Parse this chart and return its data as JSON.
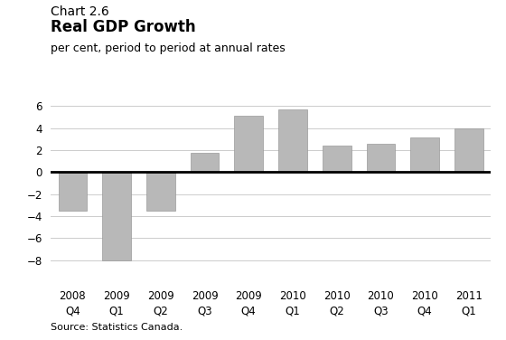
{
  "chart_label": "Chart 2.6",
  "title": "Real GDP Growth",
  "subtitle": "per cent, period to period at annual rates",
  "source": "Source: Statistics Canada.",
  "categories": [
    "2008\nQ4",
    "2009\nQ1",
    "2009\nQ2",
    "2009\nQ3",
    "2009\nQ4",
    "2010\nQ1",
    "2010\nQ2",
    "2010\nQ3",
    "2010\nQ4",
    "2011\nQ1"
  ],
  "values": [
    -3.5,
    -8.0,
    -3.5,
    1.8,
    5.1,
    5.7,
    2.4,
    2.6,
    3.2,
    4.0
  ],
  "bar_color": "#b8b8b8",
  "bar_edge_color": "#999999",
  "ylim": [
    -10,
    7
  ],
  "yticks": [
    -8,
    -6,
    -4,
    -2,
    0,
    2,
    4,
    6
  ],
  "background_color": "#ffffff",
  "zero_line_color": "#000000",
  "grid_color": "#cccccc",
  "chart_label_fontsize": 10,
  "title_fontsize": 12,
  "subtitle_fontsize": 9,
  "tick_fontsize": 8.5,
  "source_fontsize": 8
}
